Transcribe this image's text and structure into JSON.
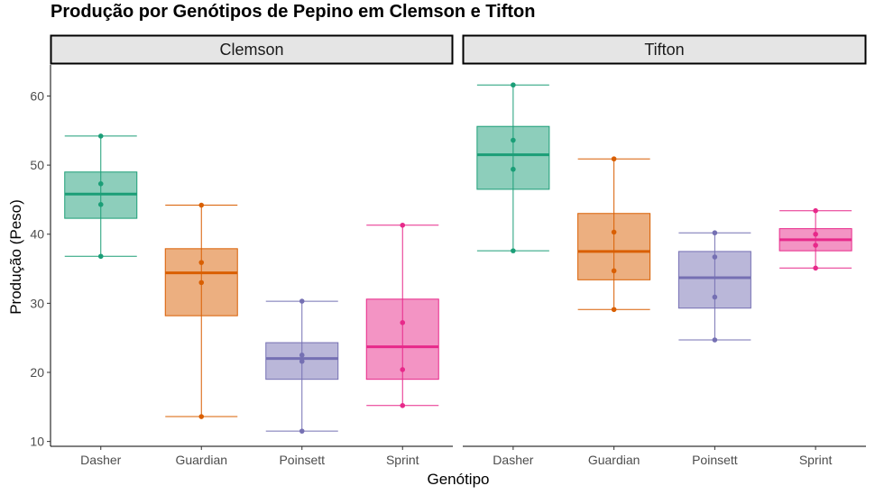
{
  "chart_data": {
    "type": "boxplot",
    "title": "Produção por Genótipos de Pepino em Clemson e Tifton",
    "xlabel": "Genótipo",
    "ylabel": "Produção (Peso)",
    "categories": [
      "Dasher",
      "Guardian",
      "Poinsett",
      "Sprint"
    ],
    "colors": {
      "Dasher": "#1b9e77",
      "Guardian": "#d95f02",
      "Poinsett": "#7570b3",
      "Sprint": "#e7298a"
    },
    "ylim": [
      9.3,
      64.5
    ],
    "yticks": [
      10,
      20,
      30,
      40,
      50,
      60
    ],
    "facets": [
      {
        "label": "Clemson",
        "boxes": [
          {
            "category": "Dasher",
            "min": 36.8,
            "q1": 42.3,
            "median": 45.8,
            "q3": 49.0,
            "max": 54.2,
            "points": [
              54.2,
              47.3,
              44.3,
              36.8
            ]
          },
          {
            "category": "Guardian",
            "min": 13.6,
            "q1": 28.2,
            "median": 34.4,
            "q3": 37.9,
            "max": 44.2,
            "points": [
              44.2,
              35.9,
              33.0,
              13.6
            ]
          },
          {
            "category": "Poinsett",
            "min": 11.5,
            "q1": 19.0,
            "median": 22.0,
            "q3": 24.3,
            "max": 30.3,
            "points": [
              30.3,
              22.5,
              21.6,
              11.5
            ]
          },
          {
            "category": "Sprint",
            "min": 15.2,
            "q1": 19.0,
            "median": 23.7,
            "q3": 30.6,
            "max": 41.3,
            "points": [
              41.3,
              27.2,
              20.4,
              15.2
            ]
          }
        ]
      },
      {
        "label": "Tifton",
        "boxes": [
          {
            "category": "Dasher",
            "min": 37.6,
            "q1": 46.5,
            "median": 51.5,
            "q3": 55.6,
            "max": 61.6,
            "points": [
              61.6,
              53.6,
              49.4,
              37.6
            ]
          },
          {
            "category": "Guardian",
            "min": 29.1,
            "q1": 33.4,
            "median": 37.5,
            "q3": 43.0,
            "max": 50.9,
            "points": [
              50.9,
              40.3,
              34.7,
              29.1
            ]
          },
          {
            "category": "Poinsett",
            "min": 24.7,
            "q1": 29.3,
            "median": 33.7,
            "q3": 37.5,
            "max": 40.2,
            "points": [
              40.2,
              36.7,
              30.9,
              24.7
            ]
          },
          {
            "category": "Sprint",
            "min": 35.1,
            "q1": 37.6,
            "median": 39.2,
            "q3": 40.8,
            "max": 43.4,
            "points": [
              43.4,
              40.0,
              38.4,
              35.1
            ]
          }
        ]
      }
    ]
  }
}
